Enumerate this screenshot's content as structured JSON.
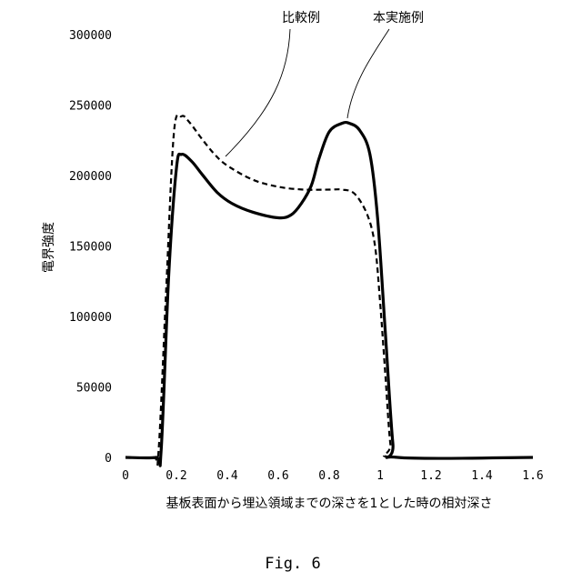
{
  "chart_data": {
    "type": "line",
    "xlabel": "基板表面から埋込領域までの深さを1とした時の相対深さ",
    "ylabel": "電界強度",
    "xlim": [
      0,
      1.6
    ],
    "ylim": [
      0,
      300000
    ],
    "x_ticks": [
      "0",
      "0.2",
      "0.4",
      "0.6",
      "0.8",
      "1",
      "1.2",
      "1.4",
      "1.6"
    ],
    "y_ticks": [
      "0",
      "50000",
      "100000",
      "150000",
      "200000",
      "250000",
      "300000"
    ],
    "grid": false,
    "series": [
      {
        "name": "比較例",
        "style": "dashed",
        "color": "#000000",
        "points": [
          [
            0.0,
            0
          ],
          [
            0.11,
            0
          ],
          [
            0.13,
            5000
          ],
          [
            0.16,
            120000
          ],
          [
            0.19,
            230000
          ],
          [
            0.22,
            242000
          ],
          [
            0.25,
            238000
          ],
          [
            0.3,
            226000
          ],
          [
            0.35,
            215000
          ],
          [
            0.4,
            207000
          ],
          [
            0.5,
            197000
          ],
          [
            0.6,
            192000
          ],
          [
            0.7,
            190000
          ],
          [
            0.8,
            190000
          ],
          [
            0.85,
            190000
          ],
          [
            0.9,
            187000
          ],
          [
            0.95,
            172000
          ],
          [
            0.98,
            150000
          ],
          [
            1.0,
            110000
          ],
          [
            1.02,
            60000
          ],
          [
            1.04,
            10000
          ],
          [
            1.06,
            0
          ],
          [
            1.6,
            0
          ]
        ]
      },
      {
        "name": "本実施例",
        "style": "solid",
        "color": "#000000",
        "points": [
          [
            0.0,
            0
          ],
          [
            0.12,
            0
          ],
          [
            0.14,
            5000
          ],
          [
            0.17,
            130000
          ],
          [
            0.2,
            205000
          ],
          [
            0.22,
            215000
          ],
          [
            0.26,
            210000
          ],
          [
            0.3,
            201000
          ],
          [
            0.36,
            188000
          ],
          [
            0.42,
            180000
          ],
          [
            0.5,
            174000
          ],
          [
            0.6,
            170000
          ],
          [
            0.65,
            172000
          ],
          [
            0.69,
            180000
          ],
          [
            0.73,
            193000
          ],
          [
            0.76,
            212000
          ],
          [
            0.8,
            231000
          ],
          [
            0.85,
            237000
          ],
          [
            0.88,
            237000
          ],
          [
            0.92,
            232000
          ],
          [
            0.96,
            215000
          ],
          [
            0.99,
            170000
          ],
          [
            1.02,
            90000
          ],
          [
            1.05,
            10000
          ],
          [
            1.07,
            0
          ],
          [
            1.6,
            0
          ]
        ]
      }
    ],
    "annotations": [
      {
        "text": "比較例",
        "target_series": 0
      },
      {
        "text": "本実施例",
        "target_series": 1
      }
    ]
  },
  "caption": "Fig. 6"
}
